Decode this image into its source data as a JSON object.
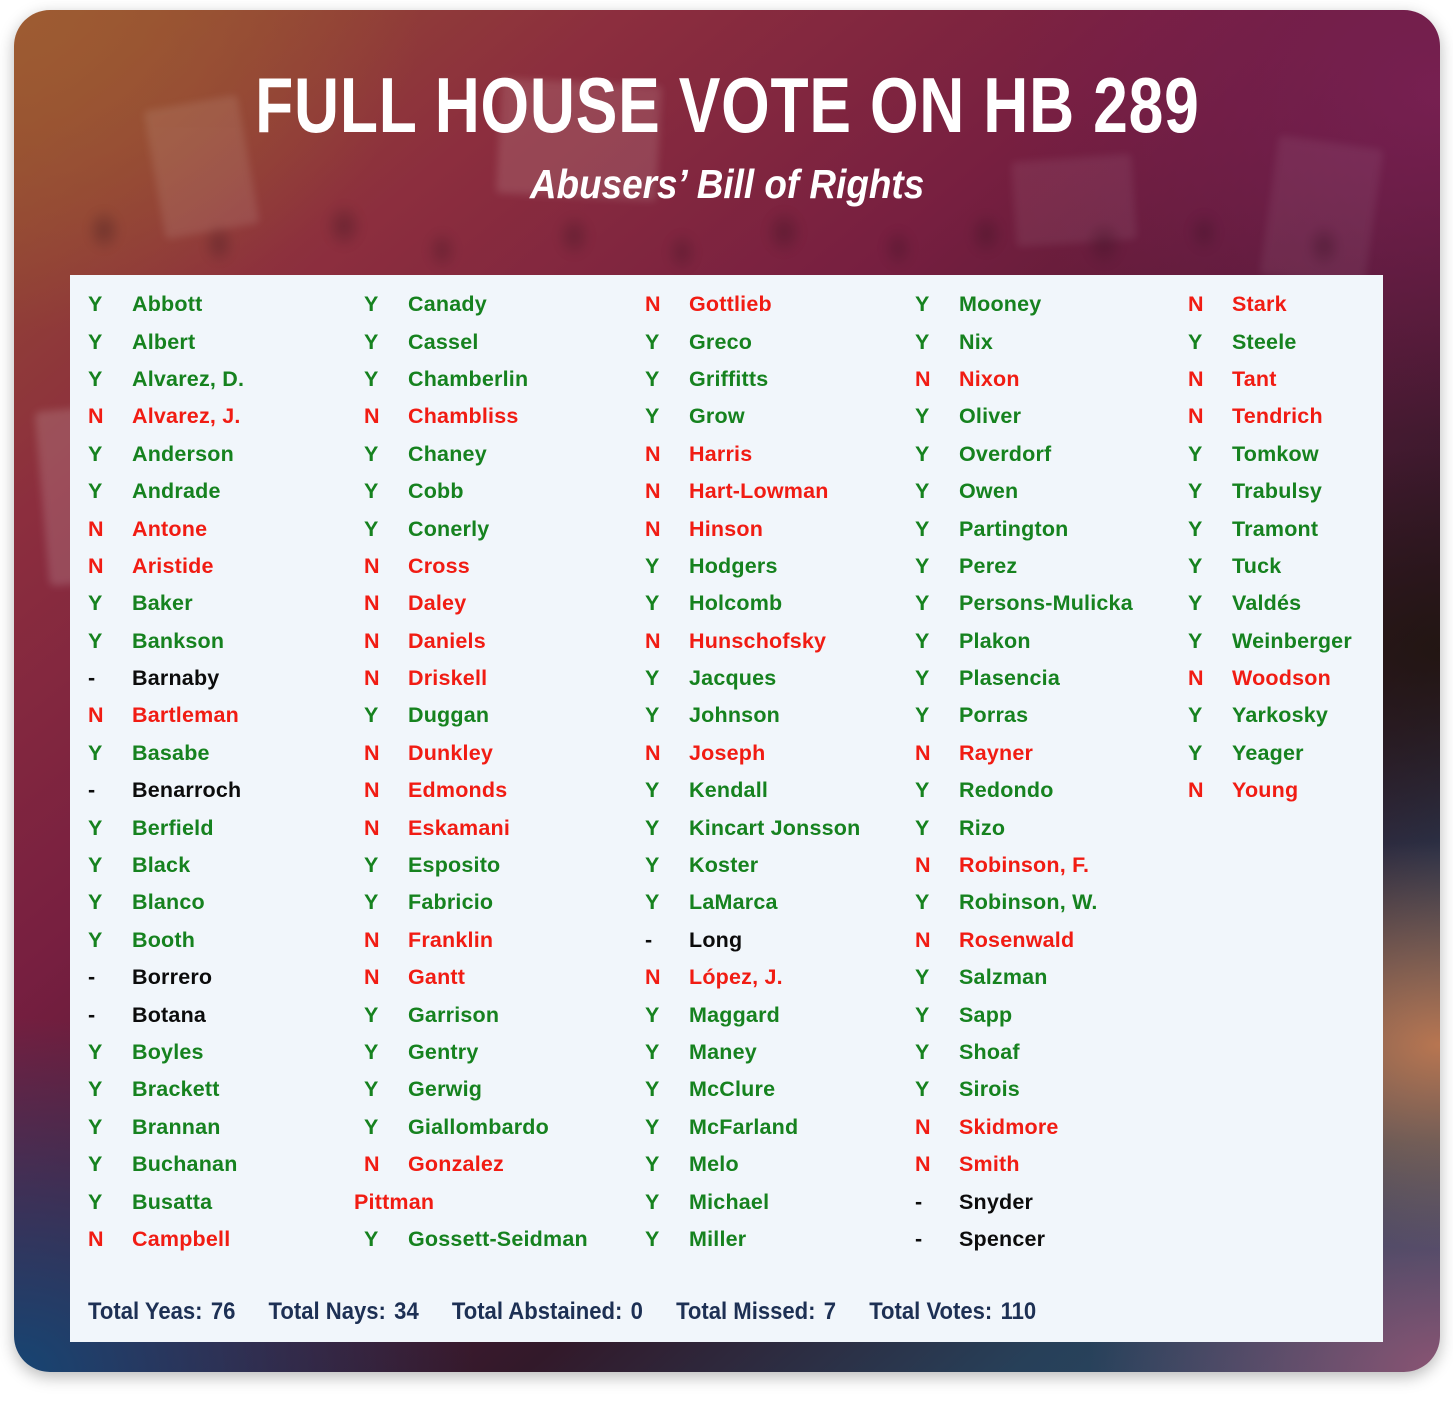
{
  "chart_data": {
    "type": "table",
    "title": "FULL HOUSE VOTE ON HB 289",
    "subtitle": "Abusers’ Bill of Rights",
    "vote_legend": {
      "Y": "Yea",
      "N": "Nay",
      "-": "Missed"
    },
    "columns": [
      [
        {
          "vote": "Y",
          "name": "Abbott"
        },
        {
          "vote": "Y",
          "name": "Albert"
        },
        {
          "vote": "Y",
          "name": "Alvarez, D."
        },
        {
          "vote": "N",
          "name": "Alvarez, J."
        },
        {
          "vote": "Y",
          "name": "Anderson"
        },
        {
          "vote": "Y",
          "name": "Andrade"
        },
        {
          "vote": "N",
          "name": "Antone"
        },
        {
          "vote": "N",
          "name": "Aristide"
        },
        {
          "vote": "Y",
          "name": "Baker"
        },
        {
          "vote": "Y",
          "name": "Bankson"
        },
        {
          "vote": "-",
          "name": "Barnaby"
        },
        {
          "vote": "N",
          "name": "Bartleman"
        },
        {
          "vote": "Y",
          "name": "Basabe"
        },
        {
          "vote": "-",
          "name": "Benarroch"
        },
        {
          "vote": "Y",
          "name": "Berfield"
        },
        {
          "vote": "Y",
          "name": "Black"
        },
        {
          "vote": "Y",
          "name": "Blanco"
        },
        {
          "vote": "Y",
          "name": "Booth"
        },
        {
          "vote": "-",
          "name": "Borrero"
        },
        {
          "vote": "-",
          "name": "Botana"
        },
        {
          "vote": "Y",
          "name": "Boyles"
        },
        {
          "vote": "Y",
          "name": "Brackett"
        },
        {
          "vote": "Y",
          "name": "Brannan"
        },
        {
          "vote": "Y",
          "name": "Buchanan"
        },
        {
          "vote": "Y",
          "name": "Busatta"
        },
        {
          "vote": "N",
          "name": "Campbell"
        }
      ],
      [
        {
          "vote": "Y",
          "name": "Canady"
        },
        {
          "vote": "Y",
          "name": "Cassel"
        },
        {
          "vote": "Y",
          "name": "Chamberlin"
        },
        {
          "vote": "N",
          "name": "Chambliss"
        },
        {
          "vote": "Y",
          "name": "Chaney"
        },
        {
          "vote": "Y",
          "name": "Cobb"
        },
        {
          "vote": "Y",
          "name": "Conerly"
        },
        {
          "vote": "N",
          "name": "Cross"
        },
        {
          "vote": "N",
          "name": "Daley"
        },
        {
          "vote": "N",
          "name": "Daniels"
        },
        {
          "vote": "N",
          "name": "Driskell"
        },
        {
          "vote": "Y",
          "name": "Duggan"
        },
        {
          "vote": "N",
          "name": "Dunkley"
        },
        {
          "vote": "N",
          "name": "Edmonds"
        },
        {
          "vote": "N",
          "name": "Eskamani"
        },
        {
          "vote": "Y",
          "name": "Esposito"
        },
        {
          "vote": "Y",
          "name": "Fabricio"
        },
        {
          "vote": "N",
          "name": "Franklin"
        },
        {
          "vote": "N",
          "name": "Gantt"
        },
        {
          "vote": "Y",
          "name": "Garrison"
        },
        {
          "vote": "Y",
          "name": "Gentry"
        },
        {
          "vote": "Y",
          "name": "Gerwig"
        },
        {
          "vote": "Y",
          "name": "Giallombardo"
        },
        {
          "vote": "N",
          "name": "Gonzalez"
        },
        {
          "vote": "",
          "name": "Pittman"
        },
        {
          "vote": "Y",
          "name": "Gossett-Seidman"
        }
      ],
      [
        {
          "vote": "N",
          "name": "Gottlieb"
        },
        {
          "vote": "Y",
          "name": "Greco"
        },
        {
          "vote": "Y",
          "name": "Griffitts"
        },
        {
          "vote": "Y",
          "name": "Grow"
        },
        {
          "vote": "N",
          "name": "Harris"
        },
        {
          "vote": "N",
          "name": "Hart-Lowman"
        },
        {
          "vote": "N",
          "name": "Hinson"
        },
        {
          "vote": "Y",
          "name": "Hodgers"
        },
        {
          "vote": "Y",
          "name": "Holcomb"
        },
        {
          "vote": "N",
          "name": "Hunschofsky"
        },
        {
          "vote": "Y",
          "name": "Jacques"
        },
        {
          "vote": "Y",
          "name": "Johnson"
        },
        {
          "vote": "N",
          "name": "Joseph"
        },
        {
          "vote": "Y",
          "name": "Kendall"
        },
        {
          "vote": "Y",
          "name": "Kincart Jonsson"
        },
        {
          "vote": "Y",
          "name": "Koster"
        },
        {
          "vote": "Y",
          "name": "LaMarca"
        },
        {
          "vote": "-",
          "name": "Long"
        },
        {
          "vote": "N",
          "name": "López, J."
        },
        {
          "vote": "Y",
          "name": "Maggard"
        },
        {
          "vote": "Y",
          "name": "Maney"
        },
        {
          "vote": "Y",
          "name": "McClure"
        },
        {
          "vote": "Y",
          "name": "McFarland"
        },
        {
          "vote": "Y",
          "name": "Melo"
        },
        {
          "vote": "Y",
          "name": "Michael"
        },
        {
          "vote": "Y",
          "name": "Miller"
        }
      ],
      [
        {
          "vote": "Y",
          "name": "Mooney"
        },
        {
          "vote": "Y",
          "name": "Nix"
        },
        {
          "vote": "N",
          "name": "Nixon"
        },
        {
          "vote": "Y",
          "name": "Oliver"
        },
        {
          "vote": "Y",
          "name": "Overdorf"
        },
        {
          "vote": "Y",
          "name": "Owen"
        },
        {
          "vote": "Y",
          "name": "Partington"
        },
        {
          "vote": "Y",
          "name": "Perez"
        },
        {
          "vote": "Y",
          "name": "Persons-Mulicka"
        },
        {
          "vote": "Y",
          "name": "Plakon"
        },
        {
          "vote": "Y",
          "name": "Plasencia"
        },
        {
          "vote": "Y",
          "name": "Porras"
        },
        {
          "vote": "N",
          "name": "Rayner"
        },
        {
          "vote": "Y",
          "name": "Redondo"
        },
        {
          "vote": "Y",
          "name": "Rizo"
        },
        {
          "vote": "N",
          "name": "Robinson, F."
        },
        {
          "vote": "Y",
          "name": "Robinson, W."
        },
        {
          "vote": "N",
          "name": "Rosenwald"
        },
        {
          "vote": "Y",
          "name": "Salzman"
        },
        {
          "vote": "Y",
          "name": "Sapp"
        },
        {
          "vote": "Y",
          "name": "Shoaf"
        },
        {
          "vote": "Y",
          "name": "Sirois"
        },
        {
          "vote": "N",
          "name": "Skidmore"
        },
        {
          "vote": "N",
          "name": "Smith"
        },
        {
          "vote": "-",
          "name": "Snyder"
        },
        {
          "vote": "-",
          "name": "Spencer"
        }
      ],
      [
        {
          "vote": "N",
          "name": "Stark"
        },
        {
          "vote": "Y",
          "name": "Steele"
        },
        {
          "vote": "N",
          "name": "Tant"
        },
        {
          "vote": "N",
          "name": "Tendrich"
        },
        {
          "vote": "Y",
          "name": "Tomkow"
        },
        {
          "vote": "Y",
          "name": "Trabulsy"
        },
        {
          "vote": "Y",
          "name": "Tramont"
        },
        {
          "vote": "Y",
          "name": "Tuck"
        },
        {
          "vote": "Y",
          "name": "Valdés"
        },
        {
          "vote": "Y",
          "name": "Weinberger"
        },
        {
          "vote": "N",
          "name": "Woodson"
        },
        {
          "vote": "Y",
          "name": "Yarkosky"
        },
        {
          "vote": "Y",
          "name": "Yeager"
        },
        {
          "vote": "N",
          "name": "Young"
        }
      ]
    ],
    "totals": {
      "yeas": 76,
      "nays": 34,
      "abstained": 0,
      "missed": 7,
      "votes": 110
    }
  },
  "totals_bar": [
    {
      "label": "Total Yeas:",
      "value": "76"
    },
    {
      "label": "Total Nays:",
      "value": "34"
    },
    {
      "label": "Total Abstained:",
      "value": "0"
    },
    {
      "label": "Total Missed:",
      "value": "7"
    },
    {
      "label": "Total Votes:",
      "value": "110"
    }
  ],
  "colors": {
    "yea": "#16821f",
    "nay": "#f11c13",
    "missed": "#0c0c0c",
    "panel_bg": "#f1f6fb",
    "totals_ink": "#1d3054",
    "title_ink": "#ffffff"
  }
}
